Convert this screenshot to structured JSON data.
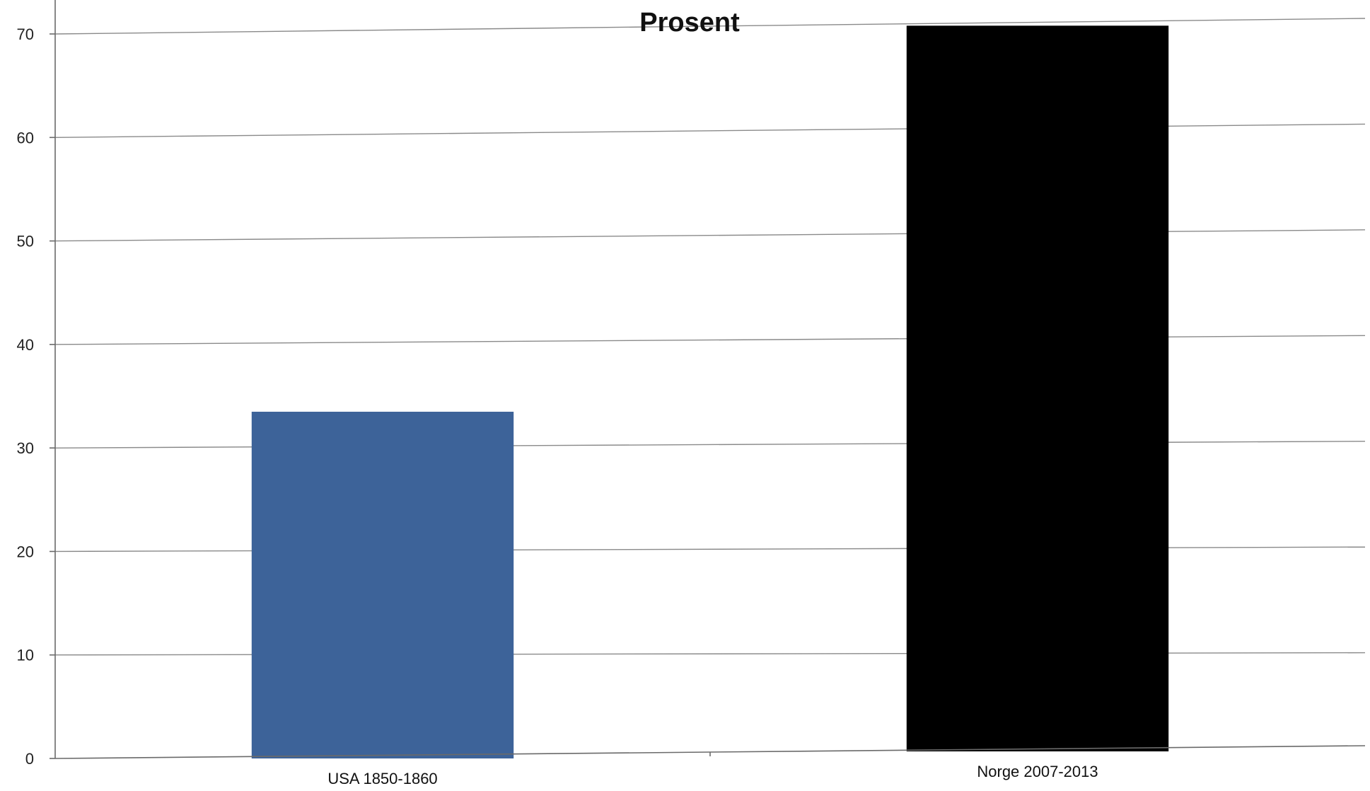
{
  "chart_data": {
    "type": "bar",
    "title": "Prosent",
    "categories": [
      "USA 1850-1860",
      "Norge 2007-2013"
    ],
    "values": [
      33.5,
      70.8
    ],
    "colors": [
      "#3d6399",
      "#000000"
    ],
    "xlabel": "",
    "ylabel": "",
    "ylim": [
      0,
      70
    ],
    "yticks": [
      0,
      10,
      20,
      30,
      40,
      50,
      60,
      70
    ],
    "grid": true,
    "legend": "none"
  }
}
